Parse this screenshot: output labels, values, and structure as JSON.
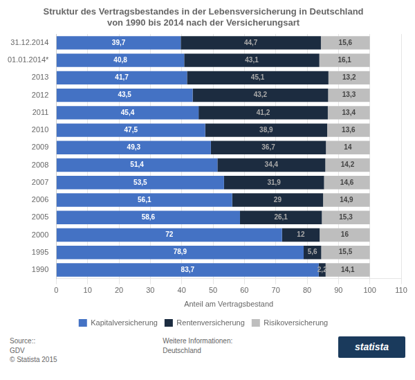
{
  "chart_data": {
    "type": "bar",
    "orientation": "horizontal",
    "stacked": true,
    "title": "Struktur des Vertragsbestandes in der Lebensversicherung in Deutschland\nvon 1990 bis 2014 nach der Versicherungsart",
    "xlabel": "Anteil am Vertragsbestand",
    "categories": [
      "31.12.2014",
      "01.01.2014*",
      "2013",
      "2012",
      "2011",
      "2010",
      "2009",
      "2008",
      "2007",
      "2006",
      "2005",
      "2000",
      "1995",
      "1990"
    ],
    "series": [
      {
        "name": "Kapitalversicherung",
        "color": "#4472C4",
        "values": [
          39.7,
          40.8,
          41.7,
          43.5,
          45.4,
          47.5,
          49.3,
          51.4,
          53.5,
          56.1,
          58.6,
          72.0,
          78.9,
          83.7
        ],
        "value_labels": [
          "39,7",
          "40,8",
          "41,7",
          "43,5",
          "45,4",
          "47,5",
          "49,3",
          "51,4",
          "53,5",
          "56,1",
          "58,6",
          "72",
          "78,9",
          "83,7"
        ]
      },
      {
        "name": "Rentenversicherung",
        "color": "#1C2C40",
        "values": [
          44.7,
          43.1,
          45.1,
          43.2,
          41.2,
          38.9,
          36.7,
          34.4,
          31.9,
          29.0,
          26.1,
          12.0,
          5.6,
          2.2
        ],
        "value_labels": [
          "44,7",
          "43,1",
          "45,1",
          "43,2",
          "41,2",
          "38,9",
          "36,7",
          "34,4",
          "31,9",
          "29",
          "26,1",
          "12",
          "5,6",
          "2,2"
        ]
      },
      {
        "name": "Risikoversicherung",
        "color": "#BEBEBE",
        "values": [
          15.6,
          16.1,
          13.2,
          13.3,
          13.4,
          13.6,
          14.0,
          14.2,
          14.6,
          14.9,
          15.3,
          16.0,
          15.5,
          14.1
        ],
        "value_labels": [
          "15,6",
          "16,1",
          "13,2",
          "13,3",
          "13,4",
          "13,6",
          "14",
          "14,2",
          "14,6",
          "14,9",
          "15,3",
          "16",
          "15,5",
          "14,1"
        ]
      }
    ],
    "xlim": [
      0,
      110
    ],
    "xticks": [
      0,
      10,
      20,
      30,
      40,
      50,
      60,
      70,
      80,
      90,
      100,
      110
    ],
    "grid": true,
    "legend": "bottom",
    "data_labels": true,
    "annotations": [
      "Source::\nGDV\n© Statista 2015",
      "Weitere Informationen:\nDeutschland",
      "statista"
    ]
  }
}
